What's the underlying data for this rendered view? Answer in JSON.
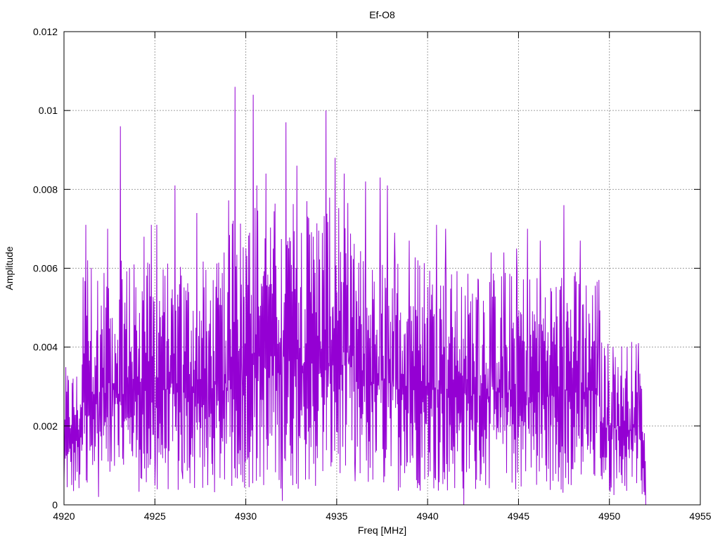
{
  "chart_data": {
    "type": "line",
    "title": "Ef-O8",
    "xlabel": "Freq [MHz]",
    "ylabel": "Amplitude",
    "xlim": [
      4920,
      4955
    ],
    "ylim": [
      0,
      0.012
    ],
    "xticks": [
      4920,
      4925,
      4930,
      4935,
      4940,
      4945,
      4950,
      4955
    ],
    "xtick_labels": [
      "4920",
      "4925",
      "4930",
      "4935",
      "4940",
      "4945",
      "4950",
      "4955"
    ],
    "yticks": [
      0,
      0.002,
      0.004,
      0.006,
      0.008,
      0.01,
      0.012
    ],
    "ytick_labels": [
      "0",
      "0.002",
      "0.004",
      "0.006",
      "0.008",
      "0.01",
      "0.012"
    ],
    "grid": true,
    "line_color": "#9400d3",
    "series": [
      {
        "x_start": 4920.0,
        "x_end": 4952.0,
        "points": 1280,
        "x": [
          4920.0,
          4921.2,
          4921.3,
          4921.9,
          4922.4,
          4922.6,
          4923.1,
          4923.6,
          4924.4,
          4924.8,
          4925.0,
          4925.1,
          4926.1,
          4926.5,
          4927.3,
          4927.9,
          4928.8,
          4929.4,
          4929.8,
          4930.2,
          4930.4,
          4930.6,
          4931.1,
          4931.5,
          4932.0,
          4932.2,
          4932.8,
          4933.7,
          4934.4,
          4934.9,
          4935.4,
          4936.0,
          4936.6,
          4937.4,
          4937.8,
          4938.2,
          4939.0,
          4939.7,
          4940.5,
          4941.0,
          4942.0,
          4942.8,
          4943.5,
          4944.2,
          4944.9,
          4945.5,
          4946.2,
          4947.5,
          4948.4,
          4949.4,
          4950.2,
          4951.6,
          4952.0
        ],
        "y": [
          0.0006,
          0.0071,
          0.0062,
          0.0002,
          0.007,
          0.0011,
          0.0096,
          0.006,
          0.0068,
          0.0071,
          0.0005,
          0.0071,
          0.0081,
          0.0008,
          0.0074,
          0.0005,
          0.0064,
          0.0106,
          0.003,
          0.0069,
          0.0104,
          0.0081,
          0.0084,
          0.0065,
          0.0001,
          0.0097,
          0.0086,
          0.0068,
          0.01,
          0.0088,
          0.0084,
          0.0006,
          0.0082,
          0.0083,
          0.0081,
          0.0069,
          0.0067,
          0.0012,
          0.0071,
          0.007,
          0.0,
          0.0057,
          0.0064,
          0.0064,
          0.0065,
          0.007,
          0.0067,
          0.0076,
          0.0067,
          0.0042,
          0.004,
          0.0041,
          0.0
        ]
      }
    ]
  }
}
